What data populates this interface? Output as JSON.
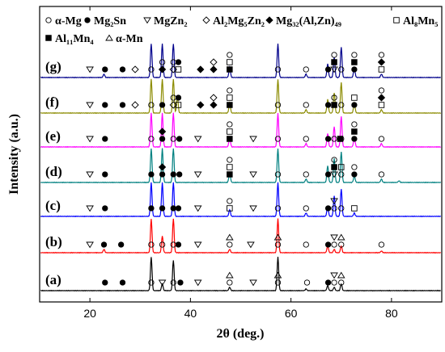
{
  "chart_data": {
    "type": "line",
    "xlabel": "2θ (deg.)",
    "ylabel": "Intensity (a.u.)",
    "xlim": [
      10,
      90
    ],
    "xticks": [
      20,
      40,
      60,
      80
    ],
    "grid": false,
    "legend": [
      {
        "symbol": "circle-open",
        "label": "α-Mg"
      },
      {
        "symbol": "circle-filled",
        "label": "Mg₂Sn"
      },
      {
        "symbol": "triangle-down-open",
        "label": "MgZn₂"
      },
      {
        "symbol": "diamond-open",
        "label": "Al₂Mg₅Zn₂"
      },
      {
        "symbol": "diamond-filled",
        "label": "Mg₃₂(Al,Zn)₄₉"
      },
      {
        "symbol": "square-open",
        "label": "Al₈Mn₅"
      },
      {
        "symbol": "square-filled",
        "label": "Al₁₁Mn₄"
      },
      {
        "symbol": "triangle-up-open",
        "label": "α-Mn"
      }
    ],
    "series": [
      {
        "label": "(a)",
        "color": "#000000",
        "peaks": [
          [
            32.2,
            1.0
          ],
          [
            34.4,
            0.2
          ],
          [
            36.6,
            0.9
          ],
          [
            47.8,
            0.1
          ],
          [
            57.4,
            1.0
          ],
          [
            63.0,
            0.05
          ],
          [
            67.3,
            0.15
          ],
          [
            68.6,
            0.1
          ],
          [
            70.0,
            0.2
          ]
        ],
        "markers": [
          [
            23,
            "circle-filled"
          ],
          [
            26.5,
            "circle-filled"
          ],
          [
            32.2,
            "circle-open"
          ],
          [
            34.4,
            "triangle-down-open"
          ],
          [
            36.6,
            "circle-open"
          ],
          [
            38,
            "circle-filled"
          ],
          [
            41.5,
            "triangle-down-open"
          ],
          [
            47.8,
            "circle-open"
          ],
          [
            47.8,
            "triangle-up-open"
          ],
          [
            52.5,
            "triangle-down-open"
          ],
          [
            57.4,
            "circle-open"
          ],
          [
            57.4,
            "triangle-up-open"
          ],
          [
            63.2,
            "circle-open"
          ],
          [
            67.4,
            "circle-filled"
          ],
          [
            68.6,
            "circle-open"
          ],
          [
            68.6,
            "triangle-down-open"
          ],
          [
            70.0,
            "circle-open"
          ],
          [
            70.0,
            "triangle-up-open"
          ]
        ]
      },
      {
        "label": "(b)",
        "color": "#ff0000",
        "peaks": [
          [
            22.8,
            0.1
          ],
          [
            32.2,
            1.0
          ],
          [
            34.4,
            0.5
          ],
          [
            36.6,
            1.0
          ],
          [
            47.8,
            0.1
          ],
          [
            57.4,
            1.0
          ],
          [
            67.3,
            0.2
          ],
          [
            68.6,
            0.1
          ],
          [
            70.0,
            0.2
          ],
          [
            78.0,
            0.05
          ]
        ],
        "markers": [
          [
            20,
            "triangle-down-open"
          ],
          [
            22.8,
            "circle-filled"
          ],
          [
            26.2,
            "circle-filled"
          ],
          [
            32.2,
            "circle-open"
          ],
          [
            34.4,
            "circle-open"
          ],
          [
            36.6,
            "circle-open"
          ],
          [
            37.6,
            "circle-filled"
          ],
          [
            41.5,
            "triangle-down-open"
          ],
          [
            47.8,
            "circle-open"
          ],
          [
            47.8,
            "triangle-up-open"
          ],
          [
            52.0,
            "triangle-down-open"
          ],
          [
            57.4,
            "circle-open"
          ],
          [
            57.4,
            "triangle-up-open"
          ],
          [
            63.0,
            "circle-open"
          ],
          [
            67.4,
            "circle-filled"
          ],
          [
            68.6,
            "circle-open"
          ],
          [
            68.6,
            "triangle-down-open"
          ],
          [
            70.0,
            "circle-open"
          ],
          [
            70.0,
            "triangle-up-open"
          ],
          [
            78.0,
            "circle-open"
          ]
        ]
      },
      {
        "label": "(c)",
        "color": "#0000ff",
        "peaks": [
          [
            32.2,
            1.0
          ],
          [
            34.4,
            1.0
          ],
          [
            36.6,
            1.0
          ],
          [
            47.8,
            0.2
          ],
          [
            57.4,
            1.0
          ],
          [
            63.0,
            0.1
          ],
          [
            67.3,
            0.3
          ],
          [
            68.6,
            0.6
          ],
          [
            70.0,
            0.8
          ],
          [
            72.6,
            0.1
          ]
        ],
        "markers": [
          [
            20,
            "triangle-down-open"
          ],
          [
            23,
            "circle-filled"
          ],
          [
            32.2,
            "circle-filled"
          ],
          [
            34.4,
            "circle-filled"
          ],
          [
            36.6,
            "circle-filled"
          ],
          [
            37.6,
            "circle-filled"
          ],
          [
            41.5,
            "triangle-down-open"
          ],
          [
            47.8,
            "square-open"
          ],
          [
            47.8,
            "circle-open"
          ],
          [
            52.5,
            "triangle-down-open"
          ],
          [
            57.4,
            "circle-open"
          ],
          [
            63.0,
            "circle-open"
          ],
          [
            67.4,
            "circle-filled"
          ],
          [
            68.6,
            "circle-open"
          ],
          [
            68.6,
            "triangle-down-open"
          ],
          [
            70.0,
            "circle-open"
          ],
          [
            72.6,
            "square-open"
          ]
        ]
      },
      {
        "label": "(d)",
        "color": "#008080",
        "peaks": [
          [
            32.2,
            1.0
          ],
          [
            34.4,
            1.0
          ],
          [
            36.6,
            1.0
          ],
          [
            47.8,
            0.3
          ],
          [
            57.4,
            1.0
          ],
          [
            63.0,
            0.1
          ],
          [
            67.3,
            0.5
          ],
          [
            68.6,
            0.7
          ],
          [
            70.0,
            0.9
          ],
          [
            72.6,
            0.2
          ],
          [
            78.0,
            0.1
          ],
          [
            81.5,
            0.05
          ]
        ],
        "markers": [
          [
            20,
            "triangle-down-open"
          ],
          [
            23,
            "circle-filled"
          ],
          [
            32.2,
            "circle-filled"
          ],
          [
            34.4,
            "circle-filled"
          ],
          [
            34.4,
            "diamond-filled"
          ],
          [
            36.6,
            "circle-filled"
          ],
          [
            37.8,
            "circle-filled"
          ],
          [
            41.5,
            "triangle-down-open"
          ],
          [
            47.8,
            "square-filled"
          ],
          [
            47.8,
            "square-open"
          ],
          [
            47.8,
            "circle-open"
          ],
          [
            52.5,
            "triangle-down-open"
          ],
          [
            57.4,
            "circle-open"
          ],
          [
            63.0,
            "circle-open"
          ],
          [
            67.4,
            "circle-filled"
          ],
          [
            68.6,
            "triangle-down-open"
          ],
          [
            68.6,
            "square-filled"
          ],
          [
            68.6,
            "circle-open"
          ],
          [
            70.0,
            "circle-open"
          ],
          [
            70.0,
            "square-open"
          ],
          [
            72.6,
            "circle-filled"
          ],
          [
            72.6,
            "circle-open"
          ],
          [
            78.0,
            "circle-open"
          ]
        ]
      },
      {
        "label": "(e)",
        "color": "#ff00ff",
        "peaks": [
          [
            32.2,
            1.0
          ],
          [
            34.4,
            1.0
          ],
          [
            36.6,
            1.0
          ],
          [
            47.8,
            0.3
          ],
          [
            57.4,
            1.0
          ],
          [
            63.0,
            0.1
          ],
          [
            67.3,
            0.4
          ],
          [
            68.6,
            0.6
          ],
          [
            70.0,
            0.9
          ],
          [
            72.6,
            0.3
          ],
          [
            78.0,
            0.1
          ]
        ],
        "markers": [
          [
            20,
            "triangle-down-open"
          ],
          [
            23,
            "circle-filled"
          ],
          [
            32.2,
            "circle-open"
          ],
          [
            34.4,
            "circle-filled"
          ],
          [
            34.4,
            "diamond-filled"
          ],
          [
            36.6,
            "circle-open"
          ],
          [
            37.8,
            "circle-filled"
          ],
          [
            41.5,
            "triangle-down-open"
          ],
          [
            47.8,
            "square-filled"
          ],
          [
            47.8,
            "square-open"
          ],
          [
            47.8,
            "circle-open"
          ],
          [
            52.5,
            "triangle-down-open"
          ],
          [
            57.4,
            "circle-open"
          ],
          [
            63.0,
            "circle-open"
          ],
          [
            67.4,
            "circle-filled"
          ],
          [
            68.6,
            "circle-open"
          ],
          [
            69.8,
            "square-filled"
          ],
          [
            70.0,
            "circle-open"
          ],
          [
            72.6,
            "circle-filled"
          ],
          [
            72.6,
            "square-filled"
          ],
          [
            72.6,
            "circle-open"
          ],
          [
            78.0,
            "circle-open"
          ]
        ]
      },
      {
        "label": "(f)",
        "color": "#8b8b00",
        "peaks": [
          [
            32.2,
            1.0
          ],
          [
            34.4,
            1.0
          ],
          [
            36.6,
            1.0
          ],
          [
            37.4,
            0.5
          ],
          [
            47.8,
            0.3
          ],
          [
            57.4,
            1.0
          ],
          [
            63.0,
            0.1
          ],
          [
            67.3,
            0.4
          ],
          [
            68.6,
            0.6
          ],
          [
            70.0,
            0.9
          ],
          [
            72.6,
            0.3
          ],
          [
            78.0,
            0.1
          ]
        ],
        "markers": [
          [
            20,
            "triangle-down-open"
          ],
          [
            23,
            "circle-filled"
          ],
          [
            26.5,
            "circle-filled"
          ],
          [
            29,
            "diamond-open"
          ],
          [
            32.2,
            "circle-open"
          ],
          [
            34.4,
            "circle-filled"
          ],
          [
            36.6,
            "diamond-open"
          ],
          [
            36.6,
            "circle-open"
          ],
          [
            37.6,
            "square-open"
          ],
          [
            37.6,
            "circle-filled"
          ],
          [
            42.0,
            "diamond-filled"
          ],
          [
            44.6,
            "diamond-filled"
          ],
          [
            44.6,
            "diamond-open"
          ],
          [
            47.8,
            "square-filled"
          ],
          [
            47.8,
            "square-open"
          ],
          [
            47.8,
            "circle-open"
          ],
          [
            57.4,
            "circle-open"
          ],
          [
            63.0,
            "circle-open"
          ],
          [
            67.4,
            "circle-filled"
          ],
          [
            68.6,
            "square-filled"
          ],
          [
            68.6,
            "circle-open"
          ],
          [
            70.0,
            "circle-open"
          ],
          [
            72.6,
            "circle-filled"
          ],
          [
            72.6,
            "square-open"
          ],
          [
            78.0,
            "square-open"
          ],
          [
            78.0,
            "diamond-filled"
          ],
          [
            78.0,
            "circle-open"
          ]
        ]
      },
      {
        "label": "(g)",
        "color": "#00008b",
        "peaks": [
          [
            22.8,
            0.1
          ],
          [
            32.2,
            1.0
          ],
          [
            34.4,
            1.0
          ],
          [
            36.6,
            1.0
          ],
          [
            47.8,
            0.3
          ],
          [
            57.4,
            1.0
          ],
          [
            63.0,
            0.1
          ],
          [
            67.3,
            0.4
          ],
          [
            68.6,
            0.6
          ],
          [
            70.0,
            0.9
          ],
          [
            72.6,
            0.3
          ],
          [
            78.0,
            0.1
          ]
        ],
        "markers": [
          [
            20,
            "triangle-down-open"
          ],
          [
            23,
            "circle-filled"
          ],
          [
            26.5,
            "circle-filled"
          ],
          [
            29,
            "diamond-open"
          ],
          [
            32.2,
            "circle-open"
          ],
          [
            34.4,
            "diamond-filled"
          ],
          [
            34.4,
            "circle-open"
          ],
          [
            36.6,
            "diamond-open"
          ],
          [
            36.6,
            "circle-open"
          ],
          [
            37.6,
            "square-open"
          ],
          [
            37.6,
            "circle-filled"
          ],
          [
            42.0,
            "diamond-filled"
          ],
          [
            44.6,
            "diamond-filled"
          ],
          [
            44.6,
            "diamond-open"
          ],
          [
            47.8,
            "square-filled"
          ],
          [
            47.8,
            "square-open"
          ],
          [
            47.8,
            "circle-open"
          ],
          [
            57.4,
            "circle-open"
          ],
          [
            63.0,
            "circle-open"
          ],
          [
            67.4,
            "circle-filled"
          ],
          [
            68.6,
            "triangle-down-open"
          ],
          [
            68.6,
            "square-filled"
          ],
          [
            68.6,
            "circle-open"
          ],
          [
            70.0,
            "circle-open"
          ],
          [
            72.6,
            "circle-filled"
          ],
          [
            72.6,
            "square-filled"
          ],
          [
            72.6,
            "circle-open"
          ],
          [
            78.0,
            "square-open"
          ],
          [
            78.0,
            "diamond-filled"
          ],
          [
            78.0,
            "circle-open"
          ]
        ]
      }
    ]
  }
}
